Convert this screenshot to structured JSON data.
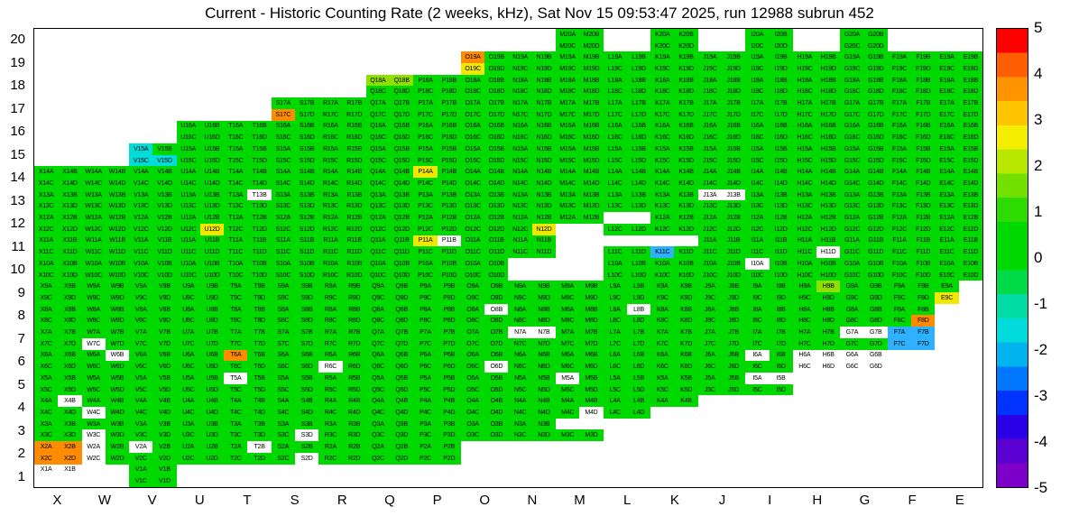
{
  "title": "Current - Historic Counting Rate (2 weeks, kHz), Sat Nov 15 09:53:47 2025, run 12988 subrun 452",
  "columns": [
    "X",
    "W",
    "V",
    "U",
    "T",
    "S",
    "R",
    "Q",
    "P",
    "O",
    "N",
    "M",
    "L",
    "K",
    "J",
    "I",
    "H",
    "G",
    "F",
    "E"
  ],
  "y_axis": {
    "labels": [
      "20",
      "19",
      "18",
      "17",
      "16",
      "15",
      "14",
      "13",
      "12",
      "11",
      "10",
      "9",
      "8",
      "7",
      "6",
      "5",
      "4",
      "3",
      "2",
      "1"
    ]
  },
  "colorbar": {
    "ticks": [
      "5",
      "4",
      "3",
      "2",
      "1",
      "0",
      "-1",
      "-2",
      "-3",
      "-4",
      "-5"
    ],
    "min": -5,
    "max": 5,
    "colors": [
      "#ff0000",
      "#ff5f00",
      "#ff9400",
      "#ffc600",
      "#f4ee00",
      "#b8e800",
      "#74e000",
      "#2edb00",
      "#00d900",
      "#00d900",
      "#00da49",
      "#00dca4",
      "#00dcdc",
      "#00b4f0",
      "#0077ff",
      "#0033ff",
      "#2a00e6",
      "#5a00d2",
      "#7d00c8"
    ]
  },
  "palette": {
    "g": "#00d900",
    "G": "#8fdf00",
    "y": "#f2e700",
    "o": "#ff8b00",
    "c": "#00dcd8",
    "b": "#2fb1ff",
    "w": "#ffffff"
  },
  "palette_approx_values": {
    "g": 0.5,
    "G": 1.5,
    "y": 2.5,
    "o": 3.5,
    "c": -1,
    "b": -2,
    "w": null
  },
  "chart_data": {
    "type": "heatmap",
    "title": "Current - Historic Counting Rate (2 weeks, kHz), Sat Nov 15 09:53:47 2025, run 12988 subrun 452",
    "xlabel": "",
    "ylabel": "",
    "x_categories": [
      "X",
      "W",
      "V",
      "U",
      "T",
      "S",
      "R",
      "Q",
      "P",
      "O",
      "N",
      "M",
      "L",
      "K",
      "J",
      "I",
      "H",
      "G",
      "F",
      "E"
    ],
    "y_categories": [
      20,
      19,
      18,
      17,
      16,
      15,
      14,
      13,
      12,
      11,
      10,
      9,
      8,
      7,
      6,
      5,
      4,
      3,
      2,
      1
    ],
    "zlim": [
      -5,
      5
    ],
    "legend_position": "right-colorbar",
    "grid": "off",
    "subcell_letters": [
      "A",
      "B",
      "C",
      "D"
    ],
    "label_pattern": "{column}{row}{letter}",
    "cell_code_note": "Each 4-char string gives the color code of subcells A,B,C,D (A top-left, B top-right, C bottom-left, D bottom-right). '.' = empty bin (no label). 'w' = white bin with label (no data). Codes map to colors via palette and to approximate kHz-difference values via palette_approx_values.",
    "rows": [
      {
        "row": 20,
        "cols": {
          "M": "gggg",
          "K": "gggg",
          "I": "gggg",
          "G": "gggg"
        }
      },
      {
        "row": 19,
        "cols": {
          "O": "ogyg",
          "N": "gggg",
          "M": "gggg",
          "L": "gggg",
          "K": "gggg",
          "J": "gggg",
          "I": "gggg",
          "H": "gggg",
          "G": "gggg",
          "F": "gggg",
          "E": "gggg"
        }
      },
      {
        "row": 18,
        "cols": {
          "Q": "GGgg",
          "P": "gggg",
          "O": "gggg",
          "N": "gggg",
          "M": "gggg",
          "L": "gggg",
          "K": "gggg",
          "J": "gggg",
          "I": "gggg",
          "H": "gggg",
          "G": "gggg",
          "F": "gggg",
          "E": "gggg"
        }
      },
      {
        "row": 17,
        "cols": {
          "S": "ggog",
          "R": "gggg",
          "Q": "gggg",
          "P": "gggg",
          "O": "gggg",
          "N": "gggg",
          "M": "gggg",
          "L": "gggg",
          "K": "gggg",
          "J": "gggg",
          "I": "gggg",
          "H": "gggg",
          "G": "gggg",
          "F": "gggg",
          "E": "gggg"
        }
      },
      {
        "row": 16,
        "cols": {
          "U": "gggg",
          "T": "gggg",
          "S": "gggg",
          "R": "gggg",
          "Q": "gggg",
          "P": "gggg",
          "O": "gggg",
          "N": "gggg",
          "M": "gggg",
          "L": "gggg",
          "K": "gggg",
          "J": "gggg",
          "I": "gggg",
          "H": "gggg",
          "G": "gggg",
          "F": "gggg",
          "E": "gggg"
        }
      },
      {
        "row": 15,
        "cols": {
          "V": "cgcc",
          "U": "gggg",
          "T": "gggg",
          "S": "gggg",
          "R": "gggg",
          "Q": "gggg",
          "P": "gggg",
          "O": "gggg",
          "N": "gggg",
          "M": "gggg",
          "L": "gggg",
          "K": "gggg",
          "J": "gggg",
          "I": "gggg",
          "H": "gggg",
          "G": "gggg",
          "F": "gggg",
          "E": "gggg"
        }
      },
      {
        "row": 14,
        "cols": {
          "X": "gggg",
          "W": "gggg",
          "V": "gggg",
          "U": "gggg",
          "T": "gggg",
          "S": "gggg",
          "R": "gggg",
          "Q": "gggg",
          "P": "yggg",
          "O": "gggg",
          "N": "gggg",
          "M": "gggg",
          "L": "gggg",
          "K": "gggg",
          "J": "gggg",
          "I": "gggg",
          "H": "gggg",
          "G": "gggg",
          "F": "gggg",
          "E": "gggg"
        }
      },
      {
        "row": 13,
        "cols": {
          "X": "gggg",
          "W": "gggg",
          "V": "gggg",
          "U": "gggg",
          "T": "gwgg",
          "S": "gggg",
          "R": "gggg",
          "Q": "gggg",
          "P": "gggg",
          "O": "gggg",
          "N": "gggg",
          "M": "gggg",
          "L": "gggg",
          "K": "gggg",
          "J": "wwgg",
          "I": "gggg",
          "H": "gggg",
          "G": "gggg",
          "F": "gggg",
          "E": "gggg"
        }
      },
      {
        "row": 12,
        "cols": {
          "X": "gggg",
          "W": "gggg",
          "V": "gggg",
          "U": "gggy",
          "T": "gggg",
          "S": "gggg",
          "R": "gggg",
          "Q": "gggg",
          "P": "gggg",
          "O": "gggg",
          "N": "gggy",
          "M": "gg..",
          "L": "..gg",
          "K": "gggg",
          "J": "gggg",
          "I": "gggg",
          "H": "gggg",
          "G": "gggg",
          "F": "gggg",
          "E": "gggg"
        }
      },
      {
        "row": 11,
        "cols": {
          "X": "gggg",
          "W": "gggg",
          "V": "gggg",
          "U": "gggg",
          "T": "gggg",
          "S": "gggg",
          "R": "gggg",
          "Q": "gggg",
          "P": "ywgg",
          "O": "gggg",
          "N": "gggg",
          "L": "..gg",
          "K": "..bg",
          "J": "gggg",
          "I": "gggg",
          "H": "gggw",
          "G": "gggg",
          "F": "gggg",
          "E": "gggg"
        }
      },
      {
        "row": 10,
        "cols": {
          "X": "gggg",
          "W": "gggg",
          "V": "gggg",
          "U": "gggg",
          "T": "gggg",
          "S": "gggg",
          "R": "gggg",
          "Q": "gggg",
          "P": "gggg",
          "O": "gggg",
          "L": "gggg",
          "K": "gggg",
          "J": "gggg",
          "I": "wggg",
          "H": "gggg",
          "G": "gggg",
          "F": "gggg",
          "E": "gggg"
        }
      },
      {
        "row": 9,
        "cols": {
          "X": "gggg",
          "W": "gggg",
          "V": "gggg",
          "U": "gggg",
          "T": "gggg",
          "S": "gggg",
          "R": "gggg",
          "Q": "gggg",
          "P": "gggg",
          "O": "gggg",
          "N": "gggg",
          "M": "gggg",
          "L": "gggg",
          "K": "gggg",
          "J": "gggg",
          "I": "gggg",
          "H": "gGgg",
          "G": "gggg",
          "F": "gggg",
          "E": "g.y."
        }
      },
      {
        "row": 8,
        "cols": {
          "X": "gggg",
          "W": "gggg",
          "V": "gggg",
          "U": "gggg",
          "T": "gggg",
          "S": "gggg",
          "R": "gggg",
          "Q": "gggg",
          "P": "gggg",
          "O": "gwgg",
          "N": "gggg",
          "M": "gggg",
          "L": "gwgg",
          "K": "gggg",
          "J": "gggg",
          "I": "gggg",
          "H": "gggg",
          "G": "gggg",
          "F": "gggo"
        }
      },
      {
        "row": 7,
        "cols": {
          "X": "gggg",
          "W": "ggwg",
          "V": "gggg",
          "U": "gggg",
          "T": "gggg",
          "S": "gggg",
          "R": "gggg",
          "Q": "gggg",
          "P": "gggg",
          "O": "gggg",
          "N": "wwgg",
          "M": "gggg",
          "L": "gggg",
          "K": "gggg",
          "J": "gggg",
          "I": "gggg",
          "H": "gggg",
          "G": "wwgg",
          "F": "bbbb"
        }
      },
      {
        "row": 6,
        "cols": {
          "X": "gggg",
          "W": "gwgg",
          "V": "gggg",
          "U": "gggg",
          "T": "oggg",
          "S": "gggg",
          "R": "ggwg",
          "Q": "gggg",
          "P": "gggg",
          "O": "gggw",
          "N": "gggg",
          "M": "gggg",
          "L": "gggg",
          "K": "gggg",
          "J": "gggg",
          "I": "wggg",
          "H": "wwww",
          "G": "wwww"
        }
      },
      {
        "row": 5,
        "cols": {
          "X": "gggg",
          "W": "gggg",
          "V": "gggg",
          "U": "gggg",
          "T": "wggg",
          "S": "gggg",
          "R": "gggg",
          "Q": "gggg",
          "P": "gggg",
          "O": "gggg",
          "N": "gggg",
          "M": "wggg",
          "L": "gggg",
          "K": "gggg",
          "J": "gggg",
          "I": "wwgg"
        }
      },
      {
        "row": 4,
        "cols": {
          "X": "gwgg",
          "W": "ggwg",
          "V": "gggg",
          "U": "gggg",
          "T": "gggg",
          "S": "gggg",
          "R": "gggg",
          "Q": "gggg",
          "P": "gggg",
          "O": "gggg",
          "N": "gggg",
          "M": "gggw",
          "L": "gggg",
          "K": "gg.."
        }
      },
      {
        "row": 3,
        "cols": {
          "X": "gggg",
          "W": "ggwg",
          "V": "gggg",
          "U": "gggg",
          "T": "gggg",
          "S": "gggw",
          "R": "gggg",
          "Q": "gggg",
          "P": "gggg",
          "O": "gggg",
          "N": "gggg",
          "M": "..gg"
        }
      },
      {
        "row": 2,
        "cols": {
          "X": "oooo",
          "W": "wgwg",
          "V": "wggg",
          "U": "gggg",
          "T": "gwgg",
          "S": "gggw",
          "R": "gggg",
          "Q": "gggg",
          "P": "gggg"
        }
      },
      {
        "row": 1,
        "cols": {
          "X": "ww..",
          "V": "gggg"
        }
      }
    ]
  }
}
